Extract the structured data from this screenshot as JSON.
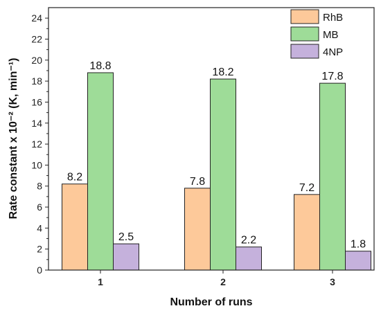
{
  "chart_data": {
    "type": "bar",
    "categories": [
      "1",
      "2",
      "3"
    ],
    "series": [
      {
        "name": "RhB",
        "values": [
          8.2,
          7.8,
          7.2
        ],
        "color": "#FDC99A"
      },
      {
        "name": "MB",
        "values": [
          18.8,
          18.2,
          17.8
        ],
        "color": "#9EDC98"
      },
      {
        "name": "4NP",
        "values": [
          2.5,
          2.2,
          1.8
        ],
        "color": "#C5B1DC"
      }
    ],
    "data_labels": [
      [
        "8.2",
        "18.8",
        "2.5"
      ],
      [
        "7.8",
        "18.2",
        "2.2"
      ],
      [
        "7.2",
        "17.8",
        "1.8"
      ]
    ],
    "xlabel": "Number of runs",
    "ylabel": "Rate constant x 10⁻² (K, min⁻¹)",
    "ylim": [
      0,
      25
    ],
    "yticks": [
      0,
      2,
      4,
      6,
      8,
      10,
      12,
      14,
      16,
      18,
      20,
      22,
      24
    ],
    "legend_position": "top-right",
    "grid": false
  }
}
